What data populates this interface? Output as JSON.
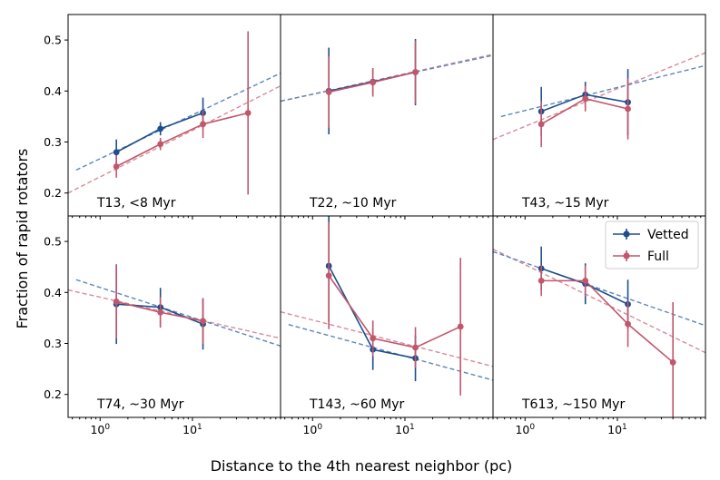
{
  "figure": {
    "ylabel": "Fraction of rapid rotators",
    "xlabel": "Distance to the 4th nearest neighbor (pc)"
  },
  "legend": {
    "location": "upper-right of bottom-right panel",
    "entries": [
      {
        "label": "Vetted",
        "color": "#1f4e8c"
      },
      {
        "label": "Full",
        "color": "#c2566b"
      }
    ]
  },
  "colors": {
    "vetted": "#1f4e8c",
    "full": "#c2566b",
    "vetted_fit": "#5b86b8",
    "full_fit": "#d98a99"
  },
  "chart_data": [
    {
      "type": "line",
      "label": "T13, <8 Myr",
      "xscale": "log",
      "xlim": [
        0.45,
        90
      ],
      "ylim": [
        0.155,
        0.55
      ],
      "yticks": [
        0.2,
        0.3,
        0.4,
        0.5
      ],
      "series": [
        {
          "name": "Vetted",
          "x": [
            1.5,
            4.5,
            13
          ],
          "y": [
            0.28,
            0.326,
            0.357
          ],
          "err": [
            0.025,
            0.013,
            0.03
          ]
        },
        {
          "name": "Full",
          "x": [
            1.5,
            4.5,
            13,
            40
          ],
          "y": [
            0.252,
            0.296,
            0.335,
            0.357
          ],
          "err": [
            0.022,
            0.012,
            0.027,
            0.16
          ]
        }
      ],
      "fits": [
        {
          "name": "Vetted",
          "x": [
            0.55,
            90
          ],
          "y": [
            0.245,
            0.435
          ]
        },
        {
          "name": "Full",
          "x": [
            0.45,
            90
          ],
          "y": [
            0.2,
            0.41
          ]
        }
      ]
    },
    {
      "type": "line",
      "label": "T22, ~10 Myr",
      "xscale": "log",
      "xlim": [
        0.45,
        90
      ],
      "ylim": [
        0.155,
        0.55
      ],
      "yticks": [
        0.2,
        0.3,
        0.4,
        0.5
      ],
      "series": [
        {
          "name": "Vetted",
          "x": [
            1.5,
            4.5,
            13
          ],
          "y": [
            0.4,
            0.418,
            0.437
          ],
          "err": [
            0.085,
            0.025,
            0.065
          ]
        },
        {
          "name": "Full",
          "x": [
            1.5,
            4.5,
            13
          ],
          "y": [
            0.398,
            0.417,
            0.437
          ],
          "err": [
            0.07,
            0.028,
            0.062
          ]
        }
      ],
      "fits": [
        {
          "name": "Vetted",
          "x": [
            0.45,
            90
          ],
          "y": [
            0.38,
            0.47
          ]
        },
        {
          "name": "Full",
          "x": [
            0.45,
            90
          ],
          "y": [
            0.38,
            0.472
          ]
        }
      ]
    },
    {
      "type": "line",
      "label": "T43, ~15 Myr",
      "xscale": "log",
      "xlim": [
        0.45,
        90
      ],
      "ylim": [
        0.155,
        0.55
      ],
      "yticks": [
        0.2,
        0.3,
        0.4,
        0.5
      ],
      "series": [
        {
          "name": "Vetted",
          "x": [
            1.5,
            4.5,
            13
          ],
          "y": [
            0.36,
            0.393,
            0.378
          ],
          "err": [
            0.048,
            0.025,
            0.065
          ]
        },
        {
          "name": "Full",
          "x": [
            1.5,
            4.5,
            13
          ],
          "y": [
            0.335,
            0.385,
            0.365
          ],
          "err": [
            0.045,
            0.025,
            0.06
          ]
        }
      ],
      "fits": [
        {
          "name": "Vetted",
          "x": [
            0.55,
            90
          ],
          "y": [
            0.35,
            0.45
          ]
        },
        {
          "name": "Full",
          "x": [
            0.45,
            90
          ],
          "y": [
            0.305,
            0.475
          ]
        }
      ]
    },
    {
      "type": "line",
      "label": "T74, ~30 Myr",
      "xscale": "log",
      "xlim": [
        0.45,
        90
      ],
      "ylim": [
        0.155,
        0.55
      ],
      "yticks": [
        0.2,
        0.3,
        0.4,
        0.5
      ],
      "series": [
        {
          "name": "Vetted",
          "x": [
            1.5,
            4.5,
            13
          ],
          "y": [
            0.377,
            0.371,
            0.338
          ],
          "err": [
            0.078,
            0.038,
            0.05
          ]
        },
        {
          "name": "Full",
          "x": [
            1.5,
            4.5,
            13
          ],
          "y": [
            0.382,
            0.361,
            0.344
          ],
          "err": [
            0.072,
            0.03,
            0.045
          ]
        }
      ],
      "fits": [
        {
          "name": "Vetted",
          "x": [
            0.55,
            90
          ],
          "y": [
            0.425,
            0.295
          ]
        },
        {
          "name": "Full",
          "x": [
            0.45,
            90
          ],
          "y": [
            0.405,
            0.31
          ]
        }
      ]
    },
    {
      "type": "line",
      "label": "T143, ~60 Myr",
      "xscale": "log",
      "xlim": [
        0.45,
        90
      ],
      "ylim": [
        0.155,
        0.55
      ],
      "yticks": [
        0.2,
        0.3,
        0.4,
        0.5
      ],
      "series": [
        {
          "name": "Vetted",
          "x": [
            1.5,
            4.5,
            13
          ],
          "y": [
            0.452,
            0.288,
            0.271
          ],
          "err": [
            0.11,
            0.04,
            0.045
          ]
        },
        {
          "name": "Full",
          "x": [
            1.5,
            4.5,
            13,
            40
          ],
          "y": [
            0.433,
            0.31,
            0.292,
            0.333
          ],
          "err": [
            0.105,
            0.035,
            0.04,
            0.135
          ]
        }
      ],
      "fits": [
        {
          "name": "Vetted",
          "x": [
            0.55,
            90
          ],
          "y": [
            0.337,
            0.228
          ]
        },
        {
          "name": "Full",
          "x": [
            0.45,
            90
          ],
          "y": [
            0.362,
            0.255
          ]
        }
      ]
    },
    {
      "type": "line",
      "label": "T613, ~150 Myr",
      "xscale": "log",
      "xlim": [
        0.45,
        90
      ],
      "ylim": [
        0.155,
        0.55
      ],
      "yticks": [
        0.2,
        0.3,
        0.4,
        0.5
      ],
      "series": [
        {
          "name": "Vetted",
          "x": [
            1.5,
            4.5,
            13
          ],
          "y": [
            0.447,
            0.417,
            0.377
          ],
          "err": [
            0.043,
            0.04,
            0.048
          ]
        },
        {
          "name": "Full",
          "x": [
            1.5,
            4.5,
            13,
            40
          ],
          "y": [
            0.423,
            0.423,
            0.338,
            0.263
          ],
          "err": [
            0.03,
            0.03,
            0.045,
            0.118
          ]
        }
      ],
      "fits": [
        {
          "name": "Vetted",
          "x": [
            0.45,
            90
          ],
          "y": [
            0.48,
            0.335
          ]
        },
        {
          "name": "Full",
          "x": [
            0.45,
            90
          ],
          "y": [
            0.485,
            0.282
          ]
        }
      ]
    }
  ]
}
